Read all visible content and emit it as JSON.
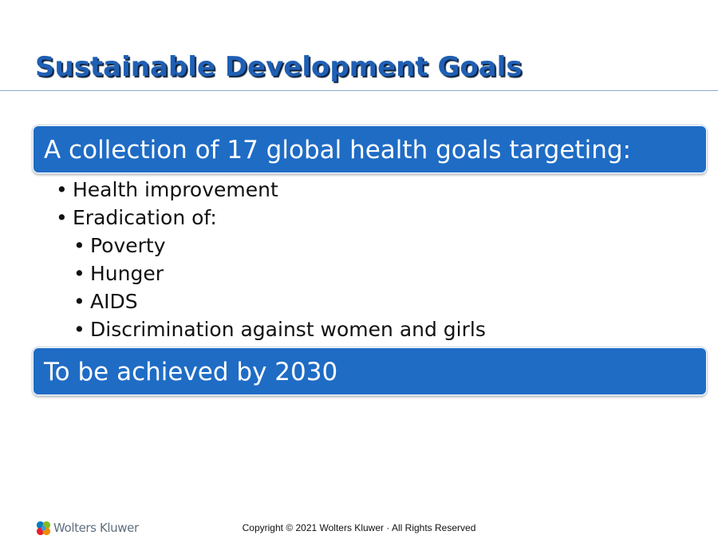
{
  "slide": {
    "title": "Sustainable Development Goals"
  },
  "banners": {
    "first": "A collection of 17 global health goals targeting:",
    "second": "To be achieved by 2030"
  },
  "bullets": [
    {
      "text": "Health improvement",
      "level": 1
    },
    {
      "text": "Eradication of:",
      "level": 1
    },
    {
      "text": "Poverty",
      "level": 2
    },
    {
      "text": "Hunger",
      "level": 2
    },
    {
      "text": "AIDS",
      "level": 2
    },
    {
      "text": "Discrimination against women and girls",
      "level": 2
    }
  ],
  "footer": {
    "logo_text": "Wolters Kluwer",
    "copyright": "Copyright © 2021 Wolters Kluwer · All Rights Reserved"
  },
  "colors": {
    "title": "#1f5fb4",
    "banner": "#1f6cc5"
  },
  "icons": {
    "logo": "wolters-kluwer-logo-icon"
  }
}
